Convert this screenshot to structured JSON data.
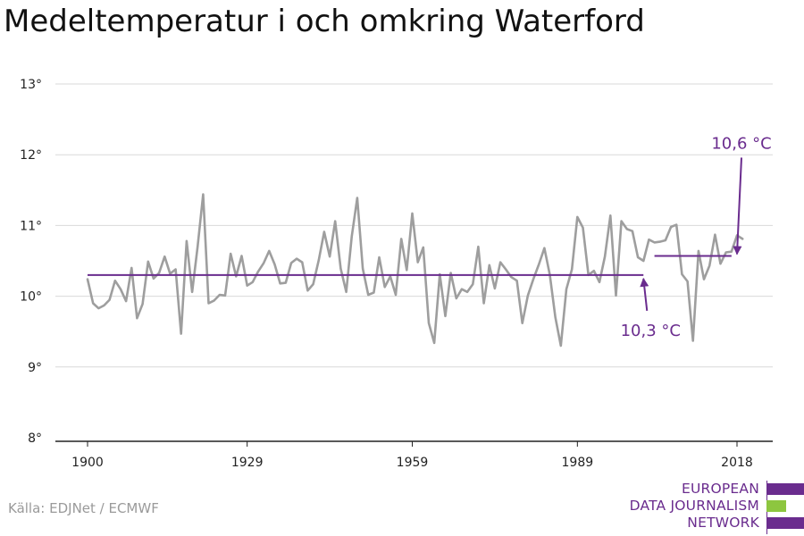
{
  "title": "Medeltemperatur i och omkring Waterford",
  "source": "Källa: EDJNet / ECMWF",
  "logo": {
    "lines": [
      "EUROPEAN",
      "DATA JOURNALISM",
      "NETWORK"
    ],
    "colors": [
      "#6a2c8e",
      "#8dc63f",
      "#6a2c8e"
    ]
  },
  "colors": {
    "series": "#9e9e9e",
    "accent": "#6a2c8e",
    "grid": "#d9d9d9",
    "axis": "#222222"
  },
  "chart_data": {
    "type": "line",
    "title": "Medeltemperatur i och omkring Waterford",
    "xlabel": "",
    "ylabel": "",
    "xlim": [
      1900,
      2019
    ],
    "ylim": [
      8,
      13
    ],
    "yticks": [
      8,
      9,
      10,
      11,
      12,
      13
    ],
    "ytick_labels": [
      "8°",
      "9°",
      "10°",
      "11°",
      "12°",
      "13°"
    ],
    "xticks": [
      1900,
      1929,
      1959,
      1989,
      2018
    ],
    "xtick_labels": [
      "1900",
      "1929",
      "1959",
      "1989",
      "2018"
    ],
    "grid": "horizontal",
    "x": [
      1900,
      1901,
      1902,
      1903,
      1904,
      1905,
      1906,
      1907,
      1908,
      1909,
      1910,
      1911,
      1912,
      1913,
      1914,
      1915,
      1916,
      1917,
      1918,
      1919,
      1920,
      1921,
      1922,
      1923,
      1924,
      1925,
      1926,
      1927,
      1928,
      1929,
      1930,
      1931,
      1932,
      1933,
      1934,
      1935,
      1936,
      1937,
      1938,
      1939,
      1940,
      1941,
      1942,
      1943,
      1944,
      1945,
      1946,
      1947,
      1948,
      1949,
      1950,
      1951,
      1952,
      1953,
      1954,
      1955,
      1956,
      1957,
      1958,
      1959,
      1960,
      1961,
      1962,
      1963,
      1964,
      1965,
      1966,
      1967,
      1968,
      1969,
      1970,
      1971,
      1972,
      1973,
      1974,
      1975,
      1976,
      1977,
      1978,
      1979,
      1980,
      1981,
      1982,
      1983,
      1984,
      1985,
      1986,
      1987,
      1988,
      1989,
      1990,
      1991,
      1992,
      1993,
      1994,
      1995,
      1996,
      1997,
      1998,
      1999,
      2000,
      2001,
      2002,
      2003,
      2004,
      2005,
      2006,
      2007,
      2008,
      2009,
      2010,
      2011,
      2012,
      2013,
      2014,
      2015,
      2016,
      2017,
      2018,
      2019
    ],
    "series": [
      {
        "values": [
          10.24,
          9.9,
          9.83,
          9.87,
          9.95,
          10.22,
          10.1,
          9.93,
          10.4,
          9.69,
          9.89,
          10.49,
          10.25,
          10.33,
          10.56,
          10.32,
          10.38,
          9.47,
          10.78,
          10.06,
          10.7,
          11.44,
          9.9,
          9.94,
          10.02,
          10.01,
          10.6,
          10.28,
          10.57,
          10.15,
          10.2,
          10.35,
          10.47,
          10.64,
          10.45,
          10.18,
          10.19,
          10.47,
          10.53,
          10.48,
          10.08,
          10.17,
          10.51,
          10.91,
          10.56,
          11.06,
          10.39,
          10.06,
          10.84,
          11.39,
          10.39,
          10.02,
          10.05,
          10.55,
          10.13,
          10.28,
          10.02,
          10.81,
          10.37,
          11.17,
          10.48,
          10.69,
          9.62,
          9.34,
          10.31,
          9.72,
          10.33,
          9.97,
          10.1,
          10.06,
          10.17,
          10.7,
          9.9,
          10.44,
          10.11,
          10.48,
          10.38,
          10.27,
          10.22,
          9.62,
          10.01,
          10.24,
          10.45,
          10.68,
          10.3,
          9.7,
          9.3,
          10.1,
          10.38,
          11.12,
          10.97,
          10.3,
          10.36,
          10.2,
          10.56,
          11.14,
          10.01,
          11.06,
          10.95,
          10.92,
          10.55,
          10.5,
          10.8,
          10.76,
          10.77,
          10.79,
          10.98,
          11.01,
          10.31,
          10.21,
          9.37,
          10.64,
          10.24,
          10.43,
          10.87,
          10.46,
          10.62,
          10.63,
          10.86,
          10.81
        ]
      }
    ],
    "reference_lines": [
      {
        "value": 10.3,
        "x_from": 1900,
        "x_to": 2001,
        "label": "10,3 °C"
      },
      {
        "value": 10.57,
        "x_from": 2003,
        "x_to": 2017,
        "label": "10,6 °C"
      }
    ]
  }
}
